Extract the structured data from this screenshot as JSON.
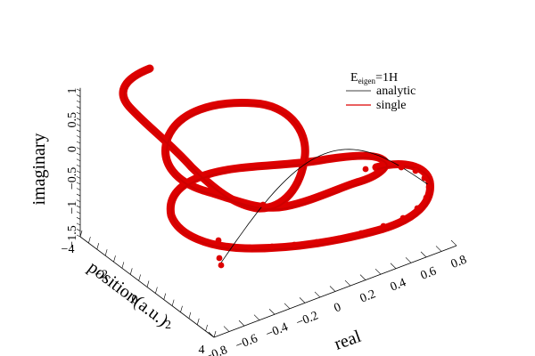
{
  "chart_data": {
    "type": "line",
    "projection": "3d",
    "title": "",
    "axes": {
      "x": {
        "label": "real",
        "range": [
          -0.8,
          0.8
        ],
        "ticks": [
          -0.8,
          -0.6,
          -0.4,
          -0.2,
          0,
          0.2,
          0.4,
          0.6,
          0.8
        ]
      },
      "y": {
        "label": "position(a.u.)",
        "range": [
          -4,
          4
        ],
        "ticks": [
          -4,
          -2,
          0,
          2,
          4
        ]
      },
      "z": {
        "label": "imaginary",
        "range": [
          -1.5,
          1
        ],
        "ticks": [
          -1.5,
          -1,
          -0.5,
          0,
          0.5,
          1
        ]
      }
    },
    "x_tick_labels": [
      "−0.8",
      "−0.6",
      "−0.4",
      "−0.2",
      "0",
      "0.2",
      "0.4",
      "0.6",
      "0.8"
    ],
    "y_tick_labels": [
      "−4",
      "−2",
      "0",
      "2",
      "4"
    ],
    "z_tick_labels": [
      "−1.5",
      "−1",
      "−0.5",
      "0",
      "0.5",
      "1"
    ],
    "legend": {
      "title_main": "E",
      "title_sub": "eigen",
      "title_tail": "=1H",
      "placement": "top-right",
      "entries": [
        {
          "name": "analytic",
          "color": "#000000",
          "style": "thin-line"
        },
        {
          "name": "single",
          "color": "#dd0000",
          "style": "thick-dotted-line"
        }
      ]
    },
    "series": [
      {
        "name": "analytic",
        "curve": "sinusoid",
        "description_values": {
          "amplitude": 0.8,
          "period": 8,
          "phase_offset_position": -4,
          "imaginary": 0
        }
      },
      {
        "name": "single",
        "curve": "complex-oscillation",
        "marker": "dot",
        "color": "#dd0000"
      }
    ],
    "grid": false
  }
}
